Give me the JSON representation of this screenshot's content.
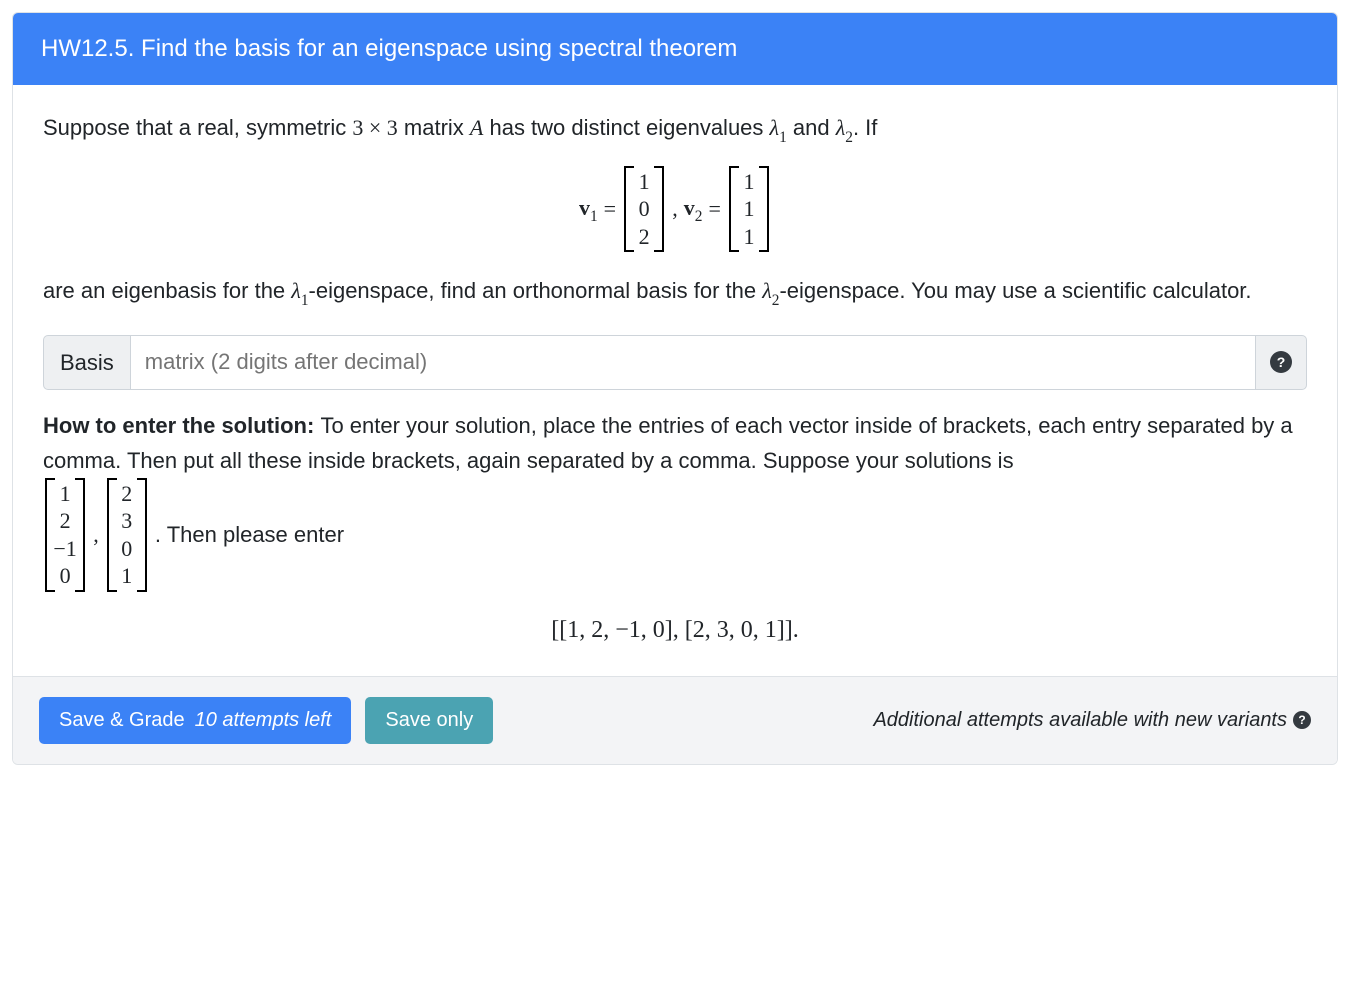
{
  "header": {
    "title": "HW12.5. Find the basis for an eigenspace using spectral theorem",
    "background_color": "#3b82f6",
    "text_color": "#ffffff"
  },
  "problem": {
    "line1_a": "Suppose that a real, symmetric ",
    "dim": "3 × 3",
    "line1_b": " matrix ",
    "matrix_name": "A",
    "line1_c": " has two distinct eigenvalues ",
    "lambda1": "λ",
    "lambda1_sub": "1",
    "and": " and ",
    "lambda2": "λ",
    "lambda2_sub": "2",
    "line1_d": ". If",
    "v1_label": "v",
    "v1_sub": "1",
    "eq": " = ",
    "v1_entries": [
      "1",
      "0",
      "2"
    ],
    "comma": " , ",
    "v2_label": "v",
    "v2_sub": "2",
    "v2_entries": [
      "1",
      "1",
      "1"
    ],
    "line2_a": "are an eigenbasis for the ",
    "line2_b": "-eigenspace, find an orthonormal basis for the ",
    "line2_c": "-eigenspace. You may use a scientific calculator."
  },
  "input": {
    "prefix": "Basis",
    "placeholder": "matrix (2 digits after decimal)"
  },
  "howto": {
    "strong": "How to enter the solution: ",
    "text_a": "To enter your solution, place the entries of each vector inside of brackets, each entry separated by a comma. Then put all these inside brackets, again separated by a comma. Suppose your solutions is ",
    "ex_vec1": [
      "1",
      "2",
      "−1",
      "0"
    ],
    "ex_comma": ",",
    "ex_vec2": [
      "2",
      "3",
      "0",
      "1"
    ],
    "text_b": ". Then please enter",
    "example_line": "[[1, 2, −1, 0], [2, 3, 0, 1]]."
  },
  "footer": {
    "save_grade": "Save & Grade",
    "attempts": "10 attempts left",
    "save_only": "Save only",
    "right_text": "Additional attempts available with new variants",
    "primary_color": "#3b82f6",
    "teal_color": "#4ba3b2",
    "footer_bg": "#f3f4f6"
  }
}
